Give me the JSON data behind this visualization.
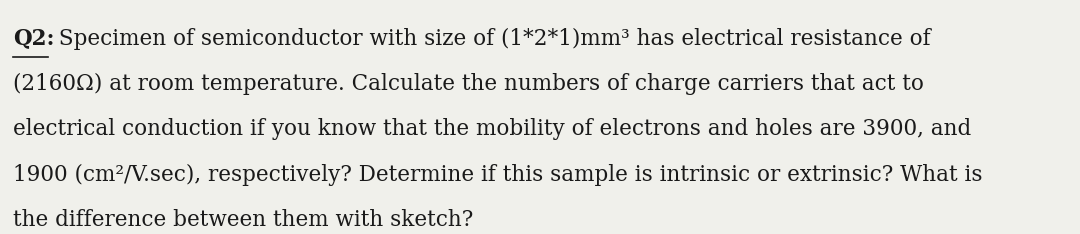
{
  "background_color": "#f0f0eb",
  "text_color": "#1a1a1a",
  "label": "Q2:",
  "line1": " Specimen of semiconductor with size of (1*2*1)mm³ has electrical resistance of",
  "line2": "(2160Ω) at room temperature. Calculate the numbers of charge carriers that act to",
  "line3": "electrical conduction if you know that the mobility of electrons and holes are 3900, and",
  "line4": "1900 (cm²/V.sec), respectively? Determine if this sample is intrinsic or extrinsic? What is",
  "line5": "the difference between them with sketch?",
  "font_size": 15.5,
  "label_font_size": 15.5,
  "fig_width": 10.8,
  "fig_height": 2.34,
  "dpi": 100
}
